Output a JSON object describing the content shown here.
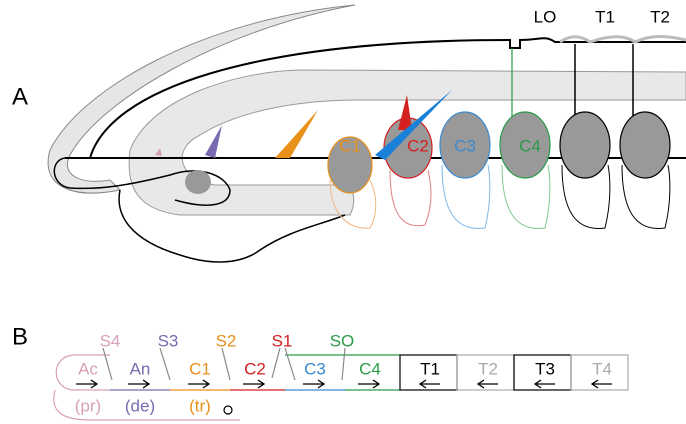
{
  "panel_a": {
    "label": "A",
    "top_labels": [
      "LO",
      "T1",
      "T2"
    ],
    "cells": [
      "C1",
      "C2",
      "C3",
      "C4"
    ]
  },
  "panel_b": {
    "label": "B",
    "sensilla": [
      "S4",
      "S3",
      "S2",
      "S1",
      "SO"
    ],
    "segments": [
      {
        "name": "Ac",
        "sub": "(pr)"
      },
      {
        "name": "An",
        "sub": "(de)"
      },
      {
        "name": "C1",
        "sub": "(tr)"
      },
      {
        "name": "C2"
      },
      {
        "name": "C3"
      },
      {
        "name": "C4"
      },
      {
        "name": "T1"
      },
      {
        "name": "T2"
      },
      {
        "name": "T3"
      },
      {
        "name": "T4"
      }
    ]
  }
}
